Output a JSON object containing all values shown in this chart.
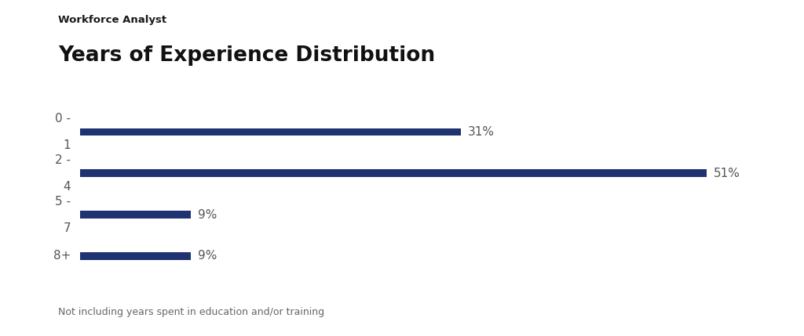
{
  "subtitle": "Workforce Analyst",
  "title": "Years of Experience Distribution",
  "footnote": "Not including years spent in education and/or training",
  "categories_top": [
    "0 -",
    "2 -",
    "5 -",
    ""
  ],
  "categories_bot": [
    "1",
    "4",
    "7",
    ""
  ],
  "categories_single": [
    "",
    "",
    "",
    "8+"
  ],
  "values": [
    31,
    51,
    9,
    9
  ],
  "bar_color": "#1f3272",
  "label_color": "#555555",
  "pct_color": "#555555",
  "background_color": "#ffffff",
  "bar_height": 0.18,
  "xlim_max": 57,
  "subtitle_fontsize": 9.5,
  "title_fontsize": 19,
  "footnote_fontsize": 9,
  "tick_fontsize": 11,
  "pct_fontsize": 11
}
